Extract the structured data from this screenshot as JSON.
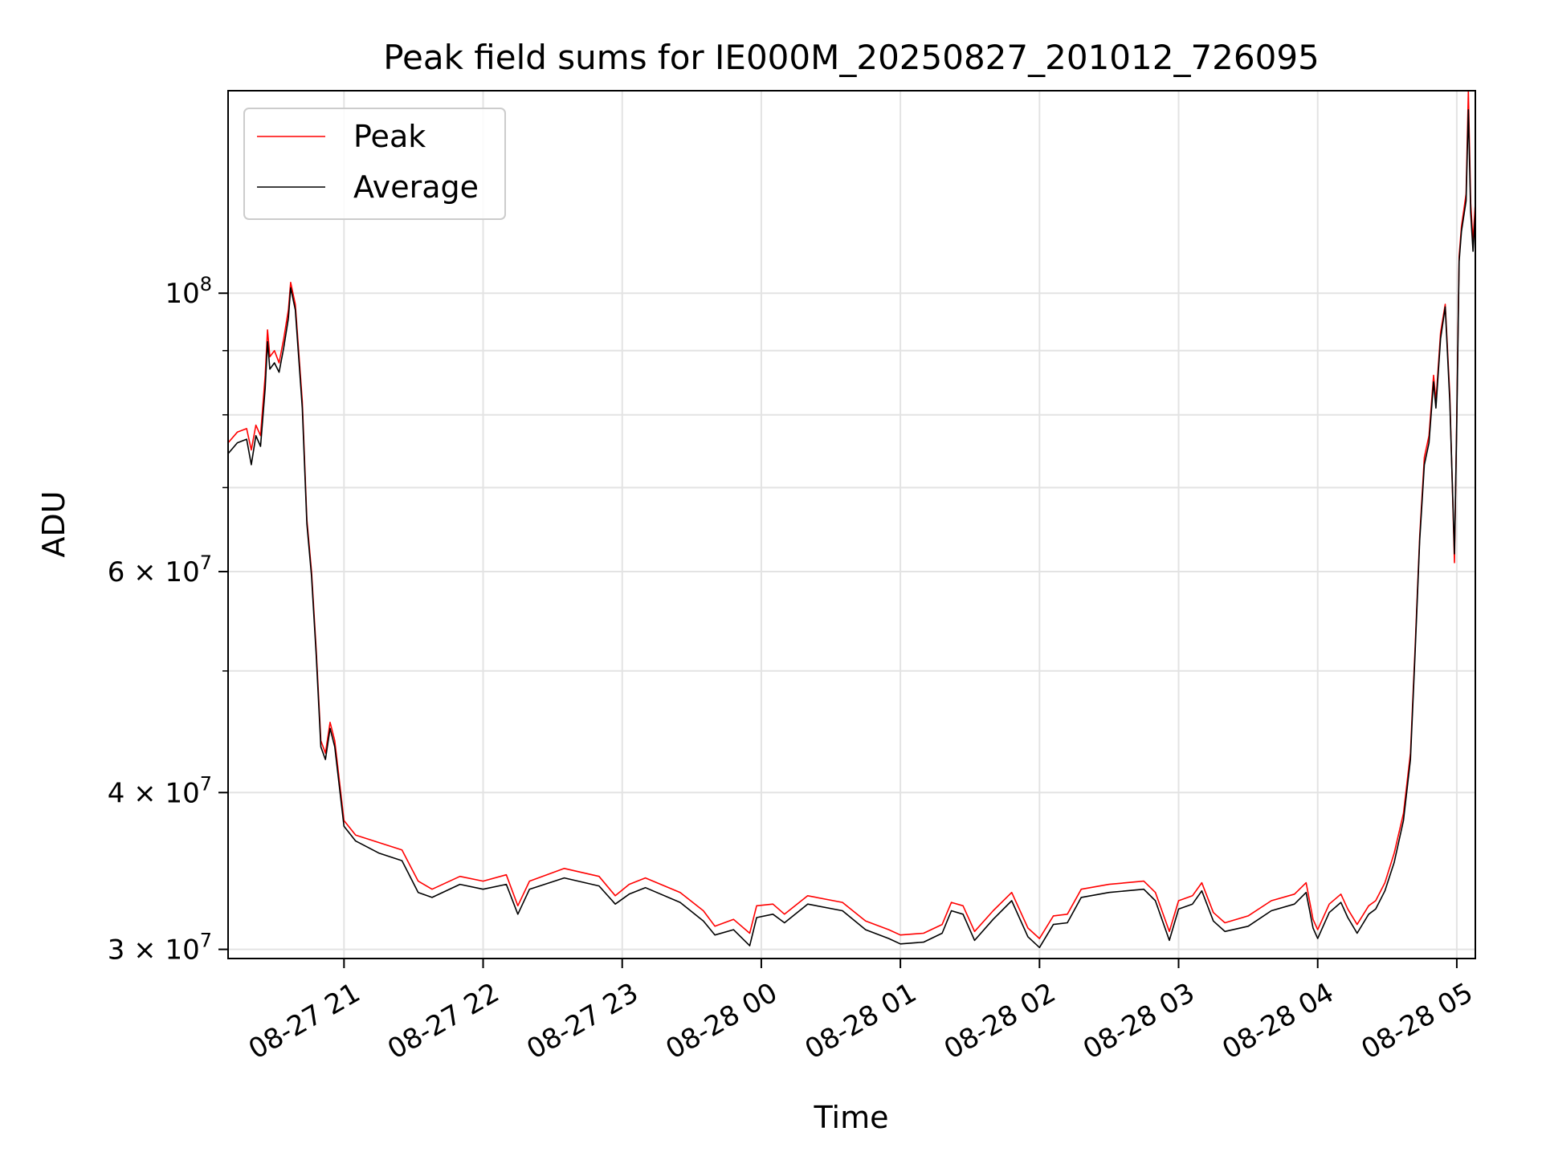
{
  "chart_data": {
    "type": "line",
    "title": "Peak field sums for IE000M_20250827_201012_726095",
    "xlabel": "Time",
    "ylabel": "ADU",
    "y_scale": "log",
    "ylim": [
      29500000,
      145000000
    ],
    "xlim": [
      "2025-08-27 20:10",
      "2025-08-28 05:08"
    ],
    "grid": true,
    "legend_position": "top-left",
    "x_ticks": [
      {
        "t": "2025-08-27 21:00",
        "label": "08-27 21"
      },
      {
        "t": "2025-08-27 22:00",
        "label": "08-27 22"
      },
      {
        "t": "2025-08-27 23:00",
        "label": "08-27 23"
      },
      {
        "t": "2025-08-28 00:00",
        "label": "08-28 00"
      },
      {
        "t": "2025-08-28 01:00",
        "label": "08-28 01"
      },
      {
        "t": "2025-08-28 02:00",
        "label": "08-28 02"
      },
      {
        "t": "2025-08-28 03:00",
        "label": "08-28 03"
      },
      {
        "t": "2025-08-28 04:00",
        "label": "08-28 04"
      },
      {
        "t": "2025-08-28 05:00",
        "label": "08-28 05"
      }
    ],
    "y_major_ticks": [
      {
        "v": 30000000,
        "base": "3 × 10",
        "exp": "7"
      },
      {
        "v": 40000000,
        "base": "4 × 10",
        "exp": "7"
      },
      {
        "v": 60000000,
        "base": "6 × 10",
        "exp": "7"
      },
      {
        "v": 100000000,
        "base": "10",
        "exp": "8"
      }
    ],
    "y_minor_ticks": [
      50000000,
      70000000,
      80000000,
      90000000
    ],
    "series": [
      {
        "name": "Peak",
        "color": "#ff0000",
        "points": [
          [
            "2025-08-27 20:10",
            76000000
          ],
          [
            "2025-08-27 20:14",
            77500000
          ],
          [
            "2025-08-27 20:18",
            78000000
          ],
          [
            "2025-08-27 20:20",
            75000000
          ],
          [
            "2025-08-27 20:22",
            78500000
          ],
          [
            "2025-08-27 20:24",
            77000000
          ],
          [
            "2025-08-27 20:26",
            86000000
          ],
          [
            "2025-08-27 20:27",
            93500000
          ],
          [
            "2025-08-27 20:28",
            89000000
          ],
          [
            "2025-08-27 20:30",
            90000000
          ],
          [
            "2025-08-27 20:32",
            88000000
          ],
          [
            "2025-08-27 20:34",
            92000000
          ],
          [
            "2025-08-27 20:36",
            97000000
          ],
          [
            "2025-08-27 20:37",
            102000000
          ],
          [
            "2025-08-27 20:39",
            98000000
          ],
          [
            "2025-08-27 20:42",
            82000000
          ],
          [
            "2025-08-27 20:44",
            66000000
          ],
          [
            "2025-08-27 20:46",
            60000000
          ],
          [
            "2025-08-27 20:48",
            52000000
          ],
          [
            "2025-08-27 20:50",
            44000000
          ],
          [
            "2025-08-27 20:52",
            43000000
          ],
          [
            "2025-08-27 20:54",
            45500000
          ],
          [
            "2025-08-27 20:56",
            44000000
          ],
          [
            "2025-08-27 21:00",
            38000000
          ],
          [
            "2025-08-27 21:05",
            37000000
          ],
          [
            "2025-08-27 21:15",
            36500000
          ],
          [
            "2025-08-27 21:25",
            36000000
          ],
          [
            "2025-08-27 21:32",
            34000000
          ],
          [
            "2025-08-27 21:38",
            33500000
          ],
          [
            "2025-08-27 21:50",
            34300000
          ],
          [
            "2025-08-27 22:00",
            34000000
          ],
          [
            "2025-08-27 22:10",
            34400000
          ],
          [
            "2025-08-27 22:15",
            32500000
          ],
          [
            "2025-08-27 22:20",
            34000000
          ],
          [
            "2025-08-27 22:35",
            34800000
          ],
          [
            "2025-08-27 22:50",
            34300000
          ],
          [
            "2025-08-27 22:57",
            33100000
          ],
          [
            "2025-08-27 23:03",
            33800000
          ],
          [
            "2025-08-27 23:10",
            34200000
          ],
          [
            "2025-08-27 23:25",
            33300000
          ],
          [
            "2025-08-27 23:35",
            32200000
          ],
          [
            "2025-08-27 23:40",
            31300000
          ],
          [
            "2025-08-27 23:48",
            31700000
          ],
          [
            "2025-08-27 23:55",
            30900000
          ],
          [
            "2025-08-27 23:58",
            32500000
          ],
          [
            "2025-08-28 00:05",
            32600000
          ],
          [
            "2025-08-28 00:10",
            32000000
          ],
          [
            "2025-08-28 00:20",
            33100000
          ],
          [
            "2025-08-28 00:35",
            32700000
          ],
          [
            "2025-08-28 00:45",
            31600000
          ],
          [
            "2025-08-28 00:55",
            31100000
          ],
          [
            "2025-08-28 01:00",
            30800000
          ],
          [
            "2025-08-28 01:10",
            30900000
          ],
          [
            "2025-08-28 01:18",
            31400000
          ],
          [
            "2025-08-28 01:22",
            32700000
          ],
          [
            "2025-08-28 01:27",
            32500000
          ],
          [
            "2025-08-28 01:32",
            31000000
          ],
          [
            "2025-08-28 01:40",
            32200000
          ],
          [
            "2025-08-28 01:48",
            33300000
          ],
          [
            "2025-08-28 01:55",
            31200000
          ],
          [
            "2025-08-28 02:00",
            30600000
          ],
          [
            "2025-08-28 02:06",
            31900000
          ],
          [
            "2025-08-28 02:12",
            32000000
          ],
          [
            "2025-08-28 02:18",
            33500000
          ],
          [
            "2025-08-28 02:30",
            33800000
          ],
          [
            "2025-08-28 02:45",
            34000000
          ],
          [
            "2025-08-28 02:50",
            33300000
          ],
          [
            "2025-08-28 02:56",
            31000000
          ],
          [
            "2025-08-28 03:00",
            32800000
          ],
          [
            "2025-08-28 03:06",
            33100000
          ],
          [
            "2025-08-28 03:10",
            33900000
          ],
          [
            "2025-08-28 03:15",
            32100000
          ],
          [
            "2025-08-28 03:20",
            31500000
          ],
          [
            "2025-08-28 03:30",
            31900000
          ],
          [
            "2025-08-28 03:40",
            32800000
          ],
          [
            "2025-08-28 03:50",
            33200000
          ],
          [
            "2025-08-28 03:55",
            33900000
          ],
          [
            "2025-08-28 03:58",
            31700000
          ],
          [
            "2025-08-28 04:00",
            31100000
          ],
          [
            "2025-08-28 04:05",
            32600000
          ],
          [
            "2025-08-28 04:10",
            33200000
          ],
          [
            "2025-08-28 04:13",
            32300000
          ],
          [
            "2025-08-28 04:17",
            31400000
          ],
          [
            "2025-08-28 04:22",
            32500000
          ],
          [
            "2025-08-28 04:25",
            32800000
          ],
          [
            "2025-08-28 04:29",
            33900000
          ],
          [
            "2025-08-28 04:33",
            35800000
          ],
          [
            "2025-08-28 04:37",
            38500000
          ],
          [
            "2025-08-28 04:40",
            43000000
          ],
          [
            "2025-08-28 04:42",
            52000000
          ],
          [
            "2025-08-28 04:44",
            64000000
          ],
          [
            "2025-08-28 04:46",
            74000000
          ],
          [
            "2025-08-28 04:48",
            77000000
          ],
          [
            "2025-08-28 04:50",
            86000000
          ],
          [
            "2025-08-28 04:51",
            82000000
          ],
          [
            "2025-08-28 04:53",
            93000000
          ],
          [
            "2025-08-28 04:55",
            98000000
          ],
          [
            "2025-08-28 04:57",
            83000000
          ],
          [
            "2025-08-28 04:59",
            61000000
          ],
          [
            "2025-08-28 05:00",
            80000000
          ],
          [
            "2025-08-28 05:01",
            107000000
          ],
          [
            "2025-08-28 05:02",
            113000000
          ],
          [
            "2025-08-28 05:04",
            120000000
          ],
          [
            "2025-08-28 05:05",
            145000000
          ],
          [
            "2025-08-28 05:06",
            118000000
          ],
          [
            "2025-08-28 05:07",
            110000000
          ],
          [
            "2025-08-28 05:08",
            118000000
          ]
        ]
      },
      {
        "name": "Average",
        "color": "#000000",
        "points": [
          [
            "2025-08-27 20:10",
            74500000
          ],
          [
            "2025-08-27 20:14",
            76000000
          ],
          [
            "2025-08-27 20:18",
            76500000
          ],
          [
            "2025-08-27 20:20",
            73000000
          ],
          [
            "2025-08-27 20:22",
            77000000
          ],
          [
            "2025-08-27 20:24",
            75500000
          ],
          [
            "2025-08-27 20:26",
            84000000
          ],
          [
            "2025-08-27 20:27",
            91500000
          ],
          [
            "2025-08-27 20:28",
            87000000
          ],
          [
            "2025-08-27 20:30",
            88000000
          ],
          [
            "2025-08-27 20:32",
            86500000
          ],
          [
            "2025-08-27 20:34",
            90500000
          ],
          [
            "2025-08-27 20:36",
            95500000
          ],
          [
            "2025-08-27 20:37",
            101000000
          ],
          [
            "2025-08-27 20:39",
            97000000
          ],
          [
            "2025-08-27 20:42",
            81000000
          ],
          [
            "2025-08-27 20:44",
            65500000
          ],
          [
            "2025-08-27 20:46",
            59500000
          ],
          [
            "2025-08-27 20:48",
            51500000
          ],
          [
            "2025-08-27 20:50",
            43500000
          ],
          [
            "2025-08-27 20:52",
            42500000
          ],
          [
            "2025-08-27 20:54",
            45000000
          ],
          [
            "2025-08-27 20:56",
            43500000
          ],
          [
            "2025-08-27 21:00",
            37600000
          ],
          [
            "2025-08-27 21:05",
            36600000
          ],
          [
            "2025-08-27 21:15",
            35800000
          ],
          [
            "2025-08-27 21:25",
            35300000
          ],
          [
            "2025-08-27 21:32",
            33300000
          ],
          [
            "2025-08-27 21:38",
            33000000
          ],
          [
            "2025-08-27 21:50",
            33800000
          ],
          [
            "2025-08-27 22:00",
            33500000
          ],
          [
            "2025-08-27 22:10",
            33800000
          ],
          [
            "2025-08-27 22:15",
            32000000
          ],
          [
            "2025-08-27 22:20",
            33500000
          ],
          [
            "2025-08-27 22:35",
            34200000
          ],
          [
            "2025-08-27 22:50",
            33700000
          ],
          [
            "2025-08-27 22:57",
            32600000
          ],
          [
            "2025-08-27 23:03",
            33200000
          ],
          [
            "2025-08-27 23:10",
            33600000
          ],
          [
            "2025-08-27 23:25",
            32700000
          ],
          [
            "2025-08-27 23:35",
            31600000
          ],
          [
            "2025-08-27 23:40",
            30800000
          ],
          [
            "2025-08-27 23:48",
            31100000
          ],
          [
            "2025-08-27 23:55",
            30200000
          ],
          [
            "2025-08-27 23:58",
            31800000
          ],
          [
            "2025-08-28 00:05",
            32000000
          ],
          [
            "2025-08-28 00:10",
            31500000
          ],
          [
            "2025-08-28 00:20",
            32600000
          ],
          [
            "2025-08-28 00:35",
            32200000
          ],
          [
            "2025-08-28 00:45",
            31100000
          ],
          [
            "2025-08-28 00:55",
            30600000
          ],
          [
            "2025-08-28 01:00",
            30300000
          ],
          [
            "2025-08-28 01:10",
            30400000
          ],
          [
            "2025-08-28 01:18",
            30900000
          ],
          [
            "2025-08-28 01:22",
            32200000
          ],
          [
            "2025-08-28 01:27",
            32000000
          ],
          [
            "2025-08-28 01:32",
            30500000
          ],
          [
            "2025-08-28 01:40",
            31700000
          ],
          [
            "2025-08-28 01:48",
            32800000
          ],
          [
            "2025-08-28 01:55",
            30700000
          ],
          [
            "2025-08-28 02:00",
            30100000
          ],
          [
            "2025-08-28 02:06",
            31400000
          ],
          [
            "2025-08-28 02:12",
            31500000
          ],
          [
            "2025-08-28 02:18",
            33000000
          ],
          [
            "2025-08-28 02:30",
            33300000
          ],
          [
            "2025-08-28 02:45",
            33500000
          ],
          [
            "2025-08-28 02:50",
            32800000
          ],
          [
            "2025-08-28 02:56",
            30500000
          ],
          [
            "2025-08-28 03:00",
            32300000
          ],
          [
            "2025-08-28 03:06",
            32600000
          ],
          [
            "2025-08-28 03:10",
            33400000
          ],
          [
            "2025-08-28 03:15",
            31600000
          ],
          [
            "2025-08-28 03:20",
            31000000
          ],
          [
            "2025-08-28 03:30",
            31300000
          ],
          [
            "2025-08-28 03:40",
            32200000
          ],
          [
            "2025-08-28 03:50",
            32600000
          ],
          [
            "2025-08-28 03:55",
            33300000
          ],
          [
            "2025-08-28 03:58",
            31200000
          ],
          [
            "2025-08-28 04:00",
            30600000
          ],
          [
            "2025-08-28 04:05",
            32100000
          ],
          [
            "2025-08-28 04:10",
            32700000
          ],
          [
            "2025-08-28 04:13",
            31800000
          ],
          [
            "2025-08-28 04:17",
            30900000
          ],
          [
            "2025-08-28 04:22",
            32000000
          ],
          [
            "2025-08-28 04:25",
            32300000
          ],
          [
            "2025-08-28 04:29",
            33400000
          ],
          [
            "2025-08-28 04:33",
            35200000
          ],
          [
            "2025-08-28 04:37",
            38000000
          ],
          [
            "2025-08-28 04:40",
            42500000
          ],
          [
            "2025-08-28 04:42",
            51500000
          ],
          [
            "2025-08-28 04:44",
            63500000
          ],
          [
            "2025-08-28 04:46",
            73000000
          ],
          [
            "2025-08-28 04:48",
            76000000
          ],
          [
            "2025-08-28 04:50",
            85000000
          ],
          [
            "2025-08-28 04:51",
            81000000
          ],
          [
            "2025-08-28 04:53",
            92000000
          ],
          [
            "2025-08-28 04:55",
            97500000
          ],
          [
            "2025-08-28 04:57",
            82000000
          ],
          [
            "2025-08-28 04:59",
            62000000
          ],
          [
            "2025-08-28 05:00",
            79000000
          ],
          [
            "2025-08-28 05:01",
            106000000
          ],
          [
            "2025-08-28 05:02",
            112000000
          ],
          [
            "2025-08-28 05:04",
            118500000
          ],
          [
            "2025-08-28 05:05",
            140000000
          ],
          [
            "2025-08-28 05:06",
            116000000
          ],
          [
            "2025-08-28 05:07",
            108000000
          ],
          [
            "2025-08-28 05:08",
            116000000
          ]
        ]
      }
    ]
  }
}
